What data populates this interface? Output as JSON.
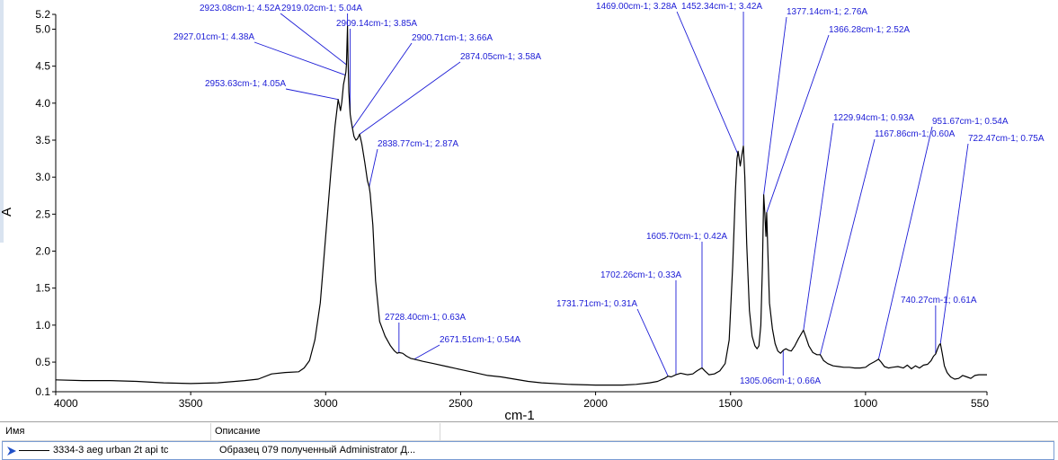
{
  "chart_data": {
    "type": "line",
    "xlabel": "cm-1",
    "ylabel": "A",
    "xlim": [
      4000,
      550
    ],
    "x_reversed": true,
    "ylim": [
      0.1,
      5.2
    ],
    "x_ticks": [
      4000,
      3500,
      3000,
      2500,
      2000,
      1500,
      1000,
      550
    ],
    "y_ticks": [
      {
        "v": 0.1,
        "label": "0.1"
      },
      {
        "v": 0.5,
        "label": "0.5"
      },
      {
        "v": 1.0,
        "label": "1.0"
      },
      {
        "v": 1.5,
        "label": "1.5"
      },
      {
        "v": 2.0,
        "label": "2.0"
      },
      {
        "v": 2.5,
        "label": "2.5"
      },
      {
        "v": 3.0,
        "label": "3.0"
      },
      {
        "v": 3.5,
        "label": "3.5"
      },
      {
        "v": 4.0,
        "label": "4.0"
      },
      {
        "v": 4.5,
        "label": "4.5"
      },
      {
        "v": 5.0,
        "label": "5.0"
      },
      {
        "v": 5.2,
        "label": "5.2"
      }
    ],
    "grid": false,
    "series": [
      {
        "name": "3334-3 aeg urban 2t api tc",
        "color": "#000000",
        "points": [
          [
            4000,
            0.26
          ],
          [
            3900,
            0.25
          ],
          [
            3800,
            0.25
          ],
          [
            3700,
            0.24
          ],
          [
            3600,
            0.22
          ],
          [
            3500,
            0.21
          ],
          [
            3400,
            0.22
          ],
          [
            3300,
            0.25
          ],
          [
            3250,
            0.27
          ],
          [
            3200,
            0.34
          ],
          [
            3150,
            0.36
          ],
          [
            3100,
            0.37
          ],
          [
            3080,
            0.42
          ],
          [
            3060,
            0.52
          ],
          [
            3040,
            0.8
          ],
          [
            3020,
            1.3
          ],
          [
            3000,
            2.2
          ],
          [
            2980,
            3.1
          ],
          [
            2965,
            3.7
          ],
          [
            2953.63,
            4.05
          ],
          [
            2945,
            3.9
          ],
          [
            2940,
            4.02
          ],
          [
            2934,
            4.25
          ],
          [
            2927.01,
            4.38
          ],
          [
            2925,
            4.42
          ],
          [
            2923.08,
            4.52
          ],
          [
            2921,
            4.78
          ],
          [
            2919.02,
            5.04
          ],
          [
            2917,
            4.6
          ],
          [
            2914,
            4.15
          ],
          [
            2909.14,
            3.85
          ],
          [
            2905,
            3.75
          ],
          [
            2900.71,
            3.66
          ],
          [
            2895,
            3.55
          ],
          [
            2888,
            3.5
          ],
          [
            2882,
            3.52
          ],
          [
            2874.05,
            3.58
          ],
          [
            2866,
            3.45
          ],
          [
            2855,
            3.2
          ],
          [
            2845,
            2.95
          ],
          [
            2838.77,
            2.87
          ],
          [
            2835,
            2.78
          ],
          [
            2825,
            2.35
          ],
          [
            2815,
            1.6
          ],
          [
            2800,
            1.05
          ],
          [
            2780,
            0.85
          ],
          [
            2760,
            0.72
          ],
          [
            2745,
            0.65
          ],
          [
            2735,
            0.62
          ],
          [
            2728.4,
            0.63
          ],
          [
            2715,
            0.62
          ],
          [
            2700,
            0.58
          ],
          [
            2685,
            0.55
          ],
          [
            2671.51,
            0.54
          ],
          [
            2640,
            0.51
          ],
          [
            2600,
            0.48
          ],
          [
            2550,
            0.44
          ],
          [
            2500,
            0.4
          ],
          [
            2450,
            0.36
          ],
          [
            2400,
            0.32
          ],
          [
            2350,
            0.3
          ],
          [
            2300,
            0.27
          ],
          [
            2250,
            0.24
          ],
          [
            2200,
            0.22
          ],
          [
            2100,
            0.2
          ],
          [
            2000,
            0.19
          ],
          [
            1900,
            0.19
          ],
          [
            1850,
            0.2
          ],
          [
            1800,
            0.22
          ],
          [
            1770,
            0.24
          ],
          [
            1745,
            0.28
          ],
          [
            1731.71,
            0.31
          ],
          [
            1720,
            0.3
          ],
          [
            1702.26,
            0.33
          ],
          [
            1685,
            0.35
          ],
          [
            1660,
            0.33
          ],
          [
            1640,
            0.34
          ],
          [
            1625,
            0.38
          ],
          [
            1612,
            0.41
          ],
          [
            1605.7,
            0.42
          ],
          [
            1595,
            0.38
          ],
          [
            1580,
            0.33
          ],
          [
            1560,
            0.34
          ],
          [
            1540,
            0.38
          ],
          [
            1520,
            0.48
          ],
          [
            1505,
            0.8
          ],
          [
            1492,
            1.8
          ],
          [
            1482,
            2.8
          ],
          [
            1476,
            3.25
          ],
          [
            1472,
            3.35
          ],
          [
            1469,
            3.28
          ],
          [
            1464,
            3.15
          ],
          [
            1458,
            3.3
          ],
          [
            1452.34,
            3.42
          ],
          [
            1447,
            3.0
          ],
          [
            1440,
            2.1
          ],
          [
            1430,
            1.2
          ],
          [
            1420,
            0.85
          ],
          [
            1410,
            0.72
          ],
          [
            1402,
            0.68
          ],
          [
            1395,
            0.72
          ],
          [
            1388,
            1.0
          ],
          [
            1382,
            1.8
          ],
          [
            1377.14,
            2.76
          ],
          [
            1373,
            2.5
          ],
          [
            1369,
            2.2
          ],
          [
            1366.28,
            2.52
          ],
          [
            1362,
            2.0
          ],
          [
            1356,
            1.3
          ],
          [
            1345,
            0.95
          ],
          [
            1335,
            0.75
          ],
          [
            1325,
            0.65
          ],
          [
            1315,
            0.62
          ],
          [
            1305.06,
            0.66
          ],
          [
            1295,
            0.68
          ],
          [
            1285,
            0.66
          ],
          [
            1275,
            0.65
          ],
          [
            1262,
            0.72
          ],
          [
            1248,
            0.82
          ],
          [
            1235,
            0.9
          ],
          [
            1229.94,
            0.93
          ],
          [
            1222,
            0.85
          ],
          [
            1210,
            0.72
          ],
          [
            1195,
            0.63
          ],
          [
            1180,
            0.6
          ],
          [
            1167.86,
            0.6
          ],
          [
            1155,
            0.52
          ],
          [
            1140,
            0.48
          ],
          [
            1120,
            0.45
          ],
          [
            1100,
            0.44
          ],
          [
            1080,
            0.43
          ],
          [
            1060,
            0.43
          ],
          [
            1040,
            0.42
          ],
          [
            1020,
            0.42
          ],
          [
            1000,
            0.43
          ],
          [
            985,
            0.47
          ],
          [
            970,
            0.5
          ],
          [
            960,
            0.52
          ],
          [
            951.67,
            0.54
          ],
          [
            942,
            0.5
          ],
          [
            930,
            0.44
          ],
          [
            915,
            0.42
          ],
          [
            900,
            0.43
          ],
          [
            880,
            0.44
          ],
          [
            860,
            0.42
          ],
          [
            845,
            0.46
          ],
          [
            830,
            0.41
          ],
          [
            815,
            0.45
          ],
          [
            800,
            0.42
          ],
          [
            785,
            0.46
          ],
          [
            770,
            0.47
          ],
          [
            757,
            0.52
          ],
          [
            748,
            0.58
          ],
          [
            740.27,
            0.61
          ],
          [
            733,
            0.68
          ],
          [
            727,
            0.73
          ],
          [
            722.47,
            0.75
          ],
          [
            716,
            0.62
          ],
          [
            708,
            0.45
          ],
          [
            698,
            0.36
          ],
          [
            685,
            0.3
          ],
          [
            670,
            0.27
          ],
          [
            655,
            0.28
          ],
          [
            640,
            0.32
          ],
          [
            625,
            0.3
          ],
          [
            610,
            0.28
          ],
          [
            595,
            0.32
          ],
          [
            580,
            0.33
          ],
          [
            565,
            0.33
          ],
          [
            550,
            0.33
          ]
        ]
      }
    ],
    "annotations": [
      {
        "x": 2923.08,
        "y": 4.52,
        "text": "2923.08cm-1; 4.52A"
      },
      {
        "x": 2919.02,
        "y": 5.04,
        "text": "2919.02cm-1; 5.04A"
      },
      {
        "x": 2909.14,
        "y": 3.85,
        "text": "2909.14cm-1; 3.85A"
      },
      {
        "x": 2927.01,
        "y": 4.38,
        "text": "2927.01cm-1; 4.38A"
      },
      {
        "x": 2900.71,
        "y": 3.66,
        "text": "2900.71cm-1; 3.66A"
      },
      {
        "x": 2874.05,
        "y": 3.58,
        "text": "2874.05cm-1; 3.58A"
      },
      {
        "x": 2953.63,
        "y": 4.05,
        "text": "2953.63cm-1; 4.05A"
      },
      {
        "x": 2838.77,
        "y": 2.87,
        "text": "2838.77cm-1; 2.87A"
      },
      {
        "x": 2728.4,
        "y": 0.63,
        "text": "2728.40cm-1; 0.63A"
      },
      {
        "x": 2671.51,
        "y": 0.54,
        "text": "2671.51cm-1; 0.54A"
      },
      {
        "x": 1469.0,
        "y": 3.28,
        "text": "1469.00cm-1; 3.28A"
      },
      {
        "x": 1452.34,
        "y": 3.42,
        "text": "1452.34cm-1; 3.42A"
      },
      {
        "x": 1377.14,
        "y": 2.76,
        "text": "1377.14cm-1; 2.76A"
      },
      {
        "x": 1366.28,
        "y": 2.52,
        "text": "1366.28cm-1; 2.52A"
      },
      {
        "x": 1229.94,
        "y": 0.93,
        "text": "1229.94cm-1; 0.93A"
      },
      {
        "x": 951.67,
        "y": 0.54,
        "text": "951.67cm-1; 0.54A"
      },
      {
        "x": 1167.86,
        "y": 0.6,
        "text": "1167.86cm-1; 0.60A"
      },
      {
        "x": 722.47,
        "y": 0.75,
        "text": "722.47cm-1; 0.75A"
      },
      {
        "x": 1605.7,
        "y": 0.42,
        "text": "1605.70cm-1; 0.42A"
      },
      {
        "x": 1702.26,
        "y": 0.33,
        "text": "1702.26cm-1; 0.33A"
      },
      {
        "x": 1731.71,
        "y": 0.31,
        "text": "1731.71cm-1; 0.31A"
      },
      {
        "x": 740.27,
        "y": 0.61,
        "text": "740.27cm-1; 0.61A"
      },
      {
        "x": 1305.06,
        "y": 0.66,
        "text": "1305.06cm-1; 0.66A"
      }
    ]
  },
  "legend": {
    "columns": {
      "name": "Имя",
      "description": "Описание"
    },
    "rows": [
      {
        "name": "3334-3 aeg urban 2t api tc",
        "description": "Образец 079 полученный Administrator Д..."
      }
    ]
  },
  "colors": {
    "annotation": "#1c1cd6",
    "spectrum": "#000000",
    "selection_arrow": "#2050c8"
  }
}
